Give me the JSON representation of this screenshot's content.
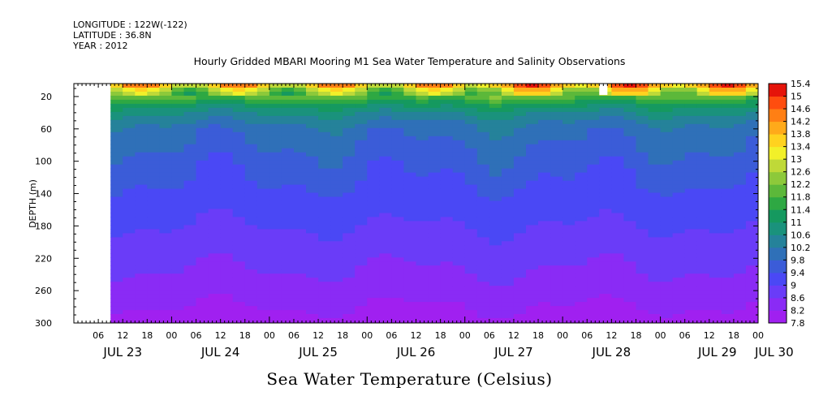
{
  "header": {
    "longitude": "LONGITUDE : 122W(-122)",
    "latitude": "LATITUDE : 36.8N",
    "year": "YEAR : 2012"
  },
  "chart_data": {
    "type": "heatmap",
    "title": "Hourly Gridded MBARI Mooring M1 Sea Water Temperature and Salinity Observations",
    "xlabel": "Sea Water Temperature (Celsius)",
    "ylabel": "DEPTH (m)",
    "y_ticks": [
      20,
      60,
      100,
      140,
      180,
      220,
      260,
      300
    ],
    "ylim": [
      300,
      4
    ],
    "y_inverted": true,
    "x_hour_labels": [
      "06",
      "12",
      "18",
      "00",
      "06",
      "12",
      "18",
      "00",
      "06",
      "12",
      "18",
      "00",
      "06",
      "12",
      "18",
      "00",
      "06",
      "12",
      "18",
      "00",
      "06",
      "12",
      "18",
      "00",
      "06",
      "12",
      "18",
      "00"
    ],
    "x_day_labels": [
      "JUL 23",
      "JUL 24",
      "JUL 25",
      "JUL 26",
      "JUL 27",
      "JUL 28",
      "JUL 29",
      "JUL 30"
    ],
    "x_range": [
      "2012-07-23T00:00",
      "2012-07-30T00:00"
    ],
    "data_start": "2012-07-23T09:00",
    "colorbar_levels": [
      7.8,
      8.2,
      8.6,
      9,
      9.4,
      9.8,
      10.2,
      10.6,
      11,
      11.4,
      11.8,
      12.2,
      12.6,
      13,
      13.4,
      13.8,
      14.2,
      14.6,
      15,
      15.4
    ],
    "colorbar_colors": [
      "#a020f0",
      "#8a2bf5",
      "#6a3cf8",
      "#4a48f5",
      "#3b5cd8",
      "#2f70b8",
      "#25829a",
      "#1a927c",
      "#15995f",
      "#2ea843",
      "#5cb83a",
      "#8dc93a",
      "#bfd938",
      "#f2f029",
      "#ffd21f",
      "#ffaa1a",
      "#ff7f14",
      "#ff4d0f",
      "#e5140a",
      "#a00000"
    ],
    "profile_depth_m": [
      4,
      10,
      20,
      30,
      40,
      60,
      80,
      100,
      140,
      180,
      220,
      260,
      300
    ],
    "profile_temp_c": [
      14.2,
      12.8,
      12.0,
      11.2,
      10.6,
      10.0,
      9.8,
      9.6,
      9.3,
      9.0,
      8.7,
      8.4,
      8.0
    ],
    "missing": [
      {
        "time": "2012-07-28T10:00",
        "depth_m": [
          4,
          18
        ]
      }
    ],
    "grid": false
  }
}
